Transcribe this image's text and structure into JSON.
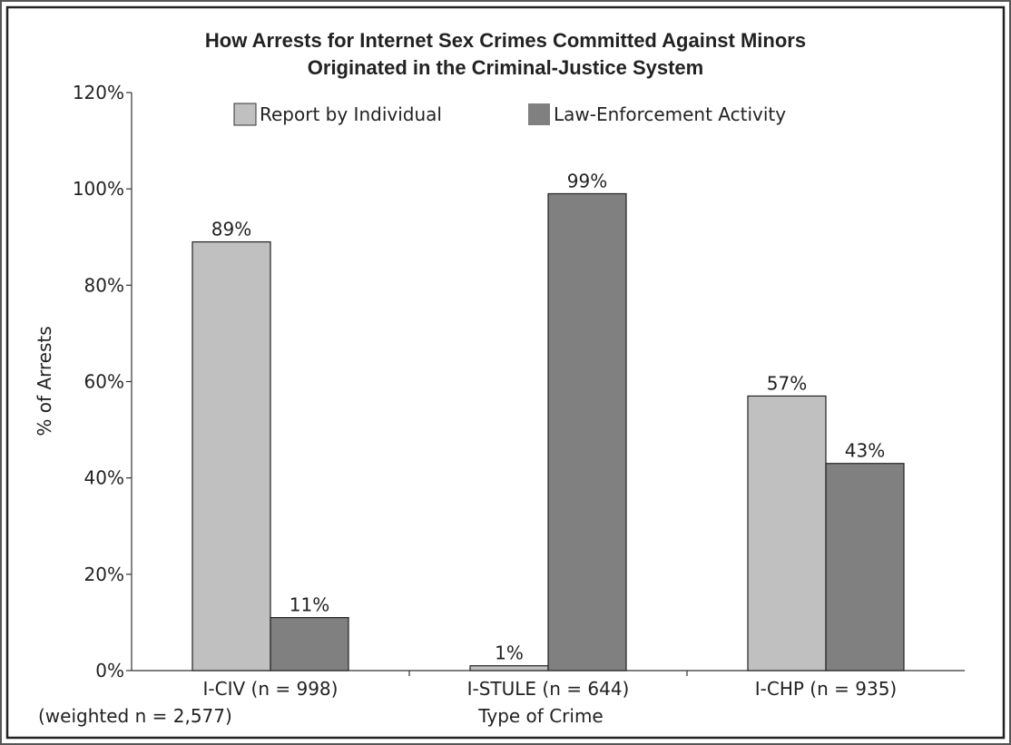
{
  "chart_data": {
    "type": "bar",
    "title_lines": [
      "How Arrests for Internet Sex Crimes Committed Against Minors",
      "Originated in the Criminal-Justice System"
    ],
    "xlabel": "Type of Crime",
    "ylabel": "% of Arrests",
    "ylim": [
      0,
      120
    ],
    "yticks": [
      0,
      20,
      40,
      60,
      80,
      100,
      120
    ],
    "ytick_labels": [
      "0%",
      "20%",
      "40%",
      "60%",
      "80%",
      "100%",
      "120%"
    ],
    "categories": [
      "I-CIV (n = 998)",
      "I-STULE (n = 644)",
      "I-CHP (n = 935)"
    ],
    "series": [
      {
        "name": "Report by Individual",
        "color": "#c0c0c0",
        "values": [
          89,
          1,
          57
        ],
        "labels": [
          "89%",
          "1%",
          "57%"
        ]
      },
      {
        "name": "Law-Enforcement Activity",
        "color": "#808080",
        "values": [
          11,
          99,
          43
        ],
        "labels": [
          "11%",
          "99%",
          "43%"
        ]
      }
    ],
    "note": "(weighted n = 2,577)",
    "legend_position": "top",
    "grid": false
  }
}
